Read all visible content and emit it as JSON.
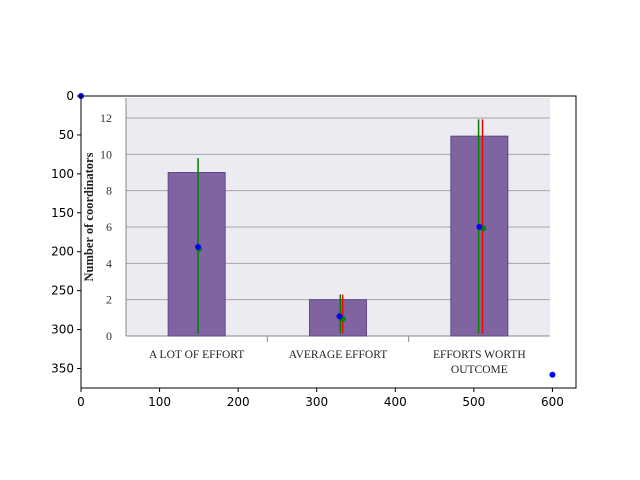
{
  "chart_data": {
    "type": "bar",
    "title": "",
    "ylabel": "Number of coordinators",
    "xlabel": "",
    "categories": [
      "A LOT OF EFFORT",
      "AVERAGE EFFORT",
      "EFFORTS WORTH OUTCOME"
    ],
    "category_lines": [
      [
        "A LOT OF EFFORT"
      ],
      [
        "AVERAGE EFFORT"
      ],
      [
        "EFFORTS WORTH",
        "OUTCOME"
      ]
    ],
    "values": [
      9,
      2,
      11
    ],
    "ylim": [
      0,
      12
    ],
    "yticks": [
      "0",
      "2",
      "4",
      "6",
      "8",
      "10",
      "12"
    ],
    "grid": true,
    "bar_color": "#8064a2",
    "plot_background": "#ecebf1",
    "overlay": {
      "xlim": [
        0,
        630
      ],
      "ylim": [
        375,
        0
      ],
      "xticks": [
        "0",
        "100",
        "200",
        "300",
        "400",
        "500",
        "600"
      ],
      "yticks": [
        "0",
        "50",
        "100",
        "150",
        "200",
        "250",
        "300",
        "350"
      ],
      "lines": [
        {
          "color": "#008000",
          "x": [
            149,
            149
          ],
          "y": [
            80,
            305
          ]
        },
        {
          "color": "#ff0000",
          "x": [
            333,
            333
          ],
          "y": [
            255,
            305
          ]
        },
        {
          "color": "#008000",
          "x": [
            330,
            330
          ],
          "y": [
            255,
            305
          ]
        },
        {
          "color": "#ff0000",
          "x": [
            511,
            511
          ],
          "y": [
            30,
            305
          ]
        },
        {
          "color": "#008000",
          "x": [
            506,
            506
          ],
          "y": [
            30,
            305
          ]
        }
      ],
      "points": [
        {
          "color": "#008000",
          "x": 150,
          "y": 196
        },
        {
          "color": "#0000ff",
          "x": 149,
          "y": 194
        },
        {
          "color": "#008000",
          "x": 333,
          "y": 286
        },
        {
          "color": "#0000ff",
          "x": 329,
          "y": 283
        },
        {
          "color": "#008000",
          "x": 512,
          "y": 170
        },
        {
          "color": "#0000ff",
          "x": 507,
          "y": 168
        },
        {
          "color": "#0000ff",
          "x": 0,
          "y": 0
        },
        {
          "color": "#0000ff",
          "x": 600,
          "y": 358
        }
      ]
    }
  }
}
